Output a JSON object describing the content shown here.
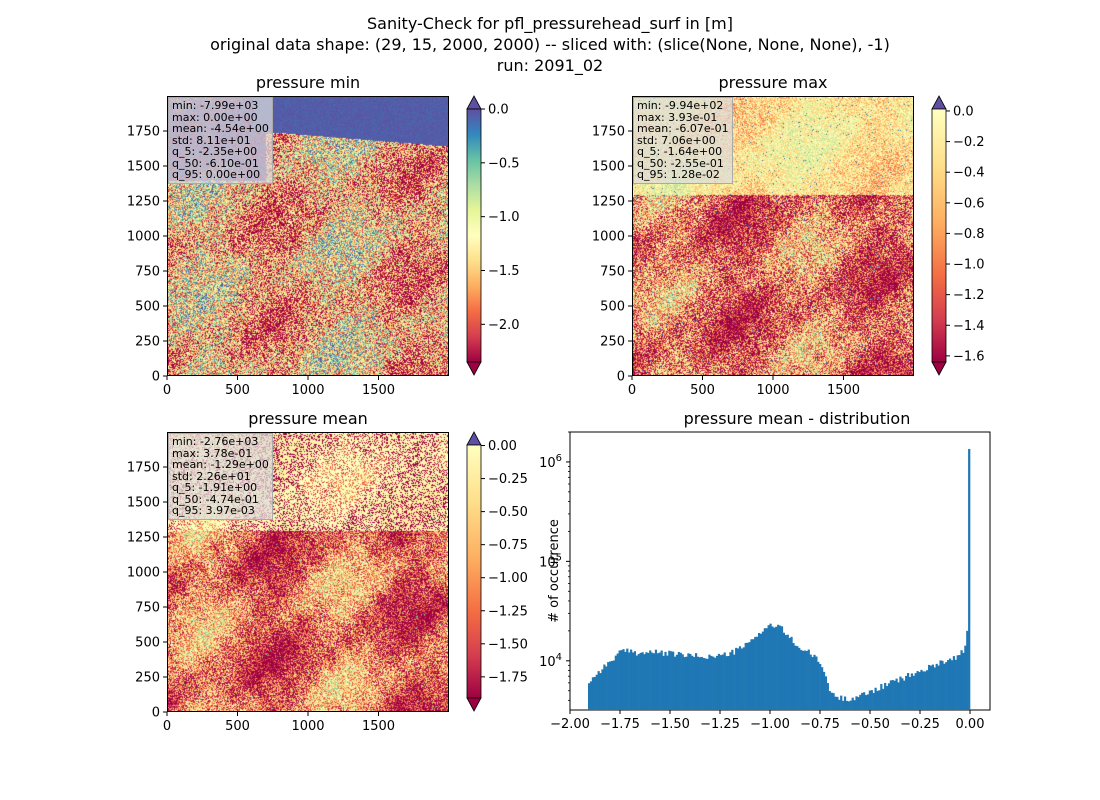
{
  "suptitle": {
    "line1": "Sanity-Check for pfl_pressurehead_surf in [m]",
    "line2": "original data shape: (29, 15, 2000, 2000) -- sliced with: (slice(None, None, None), -1)",
    "line3": "run: 2091_02"
  },
  "panels": {
    "min": {
      "title": "pressure min",
      "stats": [
        "min: -7.99e+03",
        "max: 0.00e+00",
        "mean: -4.54e+00",
        "std: 8.11e+01",
        "q_5: -2.35e+00",
        "q_50: -6.10e-01",
        "q_95: 0.00e+00"
      ],
      "cbar_ticks": [
        "0.0",
        "-0.5",
        "-1.0",
        "-1.5",
        "-2.0"
      ],
      "cbar_range": [
        -2.35,
        0.0
      ]
    },
    "max": {
      "title": "pressure max",
      "stats": [
        "min: -9.94e+02",
        "max: 3.93e-01",
        "mean: -6.07e-01",
        "std: 7.06e+00",
        "q_5: -1.64e+00",
        "q_50: -2.55e-01",
        "q_95: 1.28e-02"
      ],
      "cbar_ticks": [
        "0.0",
        "-0.2",
        "-0.4",
        "-0.6",
        "-0.8",
        "-1.0",
        "-1.2",
        "-1.4",
        "-1.6"
      ],
      "cbar_range": [
        -1.64,
        0.0128
      ]
    },
    "mean": {
      "title": "pressure mean",
      "stats": [
        "min: -2.76e+03",
        "max: 3.78e-01",
        "mean: -1.29e+00",
        "std: 2.26e+01",
        "q_5: -1.91e+00",
        "q_50: -4.74e-01",
        "q_95: 3.97e-03"
      ],
      "cbar_ticks": [
        "0.00",
        "-0.25",
        "-0.50",
        "-0.75",
        "-1.00",
        "-1.25",
        "-1.50",
        "-1.75"
      ],
      "cbar_range": [
        -1.91,
        0.00397
      ]
    }
  },
  "map_axes": {
    "x_ticks": [
      "0",
      "500",
      "1000",
      "1500"
    ],
    "y_ticks": [
      "0",
      "250",
      "500",
      "750",
      "1000",
      "1250",
      "1500",
      "1750"
    ]
  },
  "colormap": [
    "#9e0142",
    "#d53e4f",
    "#f46d43",
    "#fdae61",
    "#fee08b",
    "#ffffbf",
    "#e6f598",
    "#abdda4",
    "#66c2a5",
    "#3288bd",
    "#5e4fa2"
  ],
  "chart_data": {
    "type": "bar",
    "title": "pressure mean - distribution",
    "ylabel": "# of occurrence",
    "xlabel": "",
    "yscale": "log",
    "xlim": [
      -2.0,
      0.1
    ],
    "ylim": [
      3200,
      2000000
    ],
    "x_ticks": [
      "−2.00",
      "−1.75",
      "−1.50",
      "−1.25",
      "−1.00",
      "−0.75",
      "−0.50",
      "−0.25",
      "0.00"
    ],
    "x_tick_values": [
      -2.0,
      -1.75,
      -1.5,
      -1.25,
      -1.0,
      -0.75,
      -0.5,
      -0.25,
      0.0
    ],
    "y_ticks": [
      {
        "base": "10",
        "exp": "4",
        "value": 10000
      },
      {
        "base": "10",
        "exp": "5",
        "value": 100000
      },
      {
        "base": "10",
        "exp": "6",
        "value": 1000000
      }
    ],
    "bar_color": "#1f77b4",
    "points": [
      [
        -1.91,
        6000
      ],
      [
        -1.85,
        8000
      ],
      [
        -1.8,
        9800
      ],
      [
        -1.75,
        12200
      ],
      [
        -1.7,
        12600
      ],
      [
        -1.65,
        11900
      ],
      [
        -1.6,
        12300
      ],
      [
        -1.55,
        12000
      ],
      [
        -1.5,
        11800
      ],
      [
        -1.45,
        11600
      ],
      [
        -1.4,
        11200
      ],
      [
        -1.35,
        11200
      ],
      [
        -1.3,
        11000
      ],
      [
        -1.25,
        11300
      ],
      [
        -1.2,
        11800
      ],
      [
        -1.15,
        13300
      ],
      [
        -1.1,
        15300
      ],
      [
        -1.05,
        19500
      ],
      [
        -1.0,
        22800
      ],
      [
        -0.95,
        21800
      ],
      [
        -0.9,
        17000
      ],
      [
        -0.85,
        13300
      ],
      [
        -0.8,
        12000
      ],
      [
        -0.75,
        9500
      ],
      [
        -0.72,
        7000
      ],
      [
        -0.7,
        4800
      ],
      [
        -0.65,
        4200
      ],
      [
        -0.6,
        4200
      ],
      [
        -0.55,
        4400
      ],
      [
        -0.5,
        4900
      ],
      [
        -0.45,
        5400
      ],
      [
        -0.4,
        6000
      ],
      [
        -0.35,
        6500
      ],
      [
        -0.3,
        7200
      ],
      [
        -0.25,
        7800
      ],
      [
        -0.2,
        8600
      ],
      [
        -0.15,
        9800
      ],
      [
        -0.1,
        10200
      ],
      [
        -0.05,
        11500
      ],
      [
        -0.02,
        14000
      ],
      [
        -0.005,
        20000
      ],
      [
        0.0,
        1350000
      ]
    ]
  }
}
